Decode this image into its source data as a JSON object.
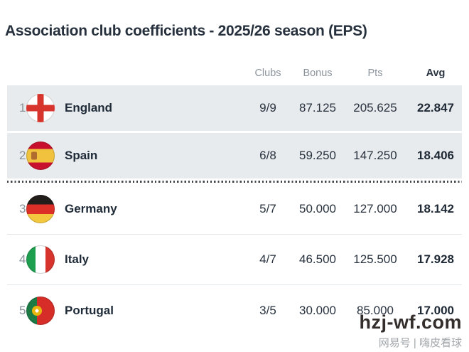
{
  "title": "Association club coefficients - 2025/26 season (EPS)",
  "table": {
    "headers": {
      "clubs": "Clubs",
      "bonus": "Bonus",
      "pts": "Pts",
      "avg": "Avg"
    },
    "rows": [
      {
        "rank": "1",
        "country": "England",
        "flag_icon": "england-flag",
        "clubs": "9/9",
        "bonus": "87.125",
        "pts": "205.625",
        "avg": "22.847"
      },
      {
        "rank": "2",
        "country": "Spain",
        "flag_icon": "spain-flag",
        "clubs": "6/8",
        "bonus": "59.250",
        "pts": "147.250",
        "avg": "18.406"
      },
      {
        "rank": "3",
        "country": "Germany",
        "flag_icon": "germany-flag",
        "clubs": "5/7",
        "bonus": "50.000",
        "pts": "127.000",
        "avg": "18.142"
      },
      {
        "rank": "4",
        "country": "Italy",
        "flag_icon": "italy-flag",
        "clubs": "4/7",
        "bonus": "46.500",
        "pts": "125.500",
        "avg": "17.928"
      },
      {
        "rank": "5",
        "country": "Portugal",
        "flag_icon": "portugal-flag",
        "clubs": "3/5",
        "bonus": "30.000",
        "pts": "85.000",
        "avg": "17.000"
      }
    ],
    "cutoff_after_rank": 2
  },
  "watermark": {
    "site": "hzj-wf.com",
    "byline": "网易号 | 嗨皮看球"
  },
  "colors": {
    "highlight_row_bg": "#e8ebed",
    "text_dark": "#26313d",
    "text_gray": "#8b939c",
    "cutoff_dots": "#43474c",
    "watermark_text": "#332e2b",
    "england_red": "#d6342c",
    "spain_red": "#c8102e",
    "spain_yellow": "#f0c23e",
    "germany_black": "#221d1a",
    "germany_red": "#dc2f27",
    "germany_gold": "#f3c83f",
    "italy_green": "#1e9e4f",
    "italy_red": "#d6342c",
    "portugal_green": "#1c7a45",
    "portugal_red": "#d62d28"
  }
}
